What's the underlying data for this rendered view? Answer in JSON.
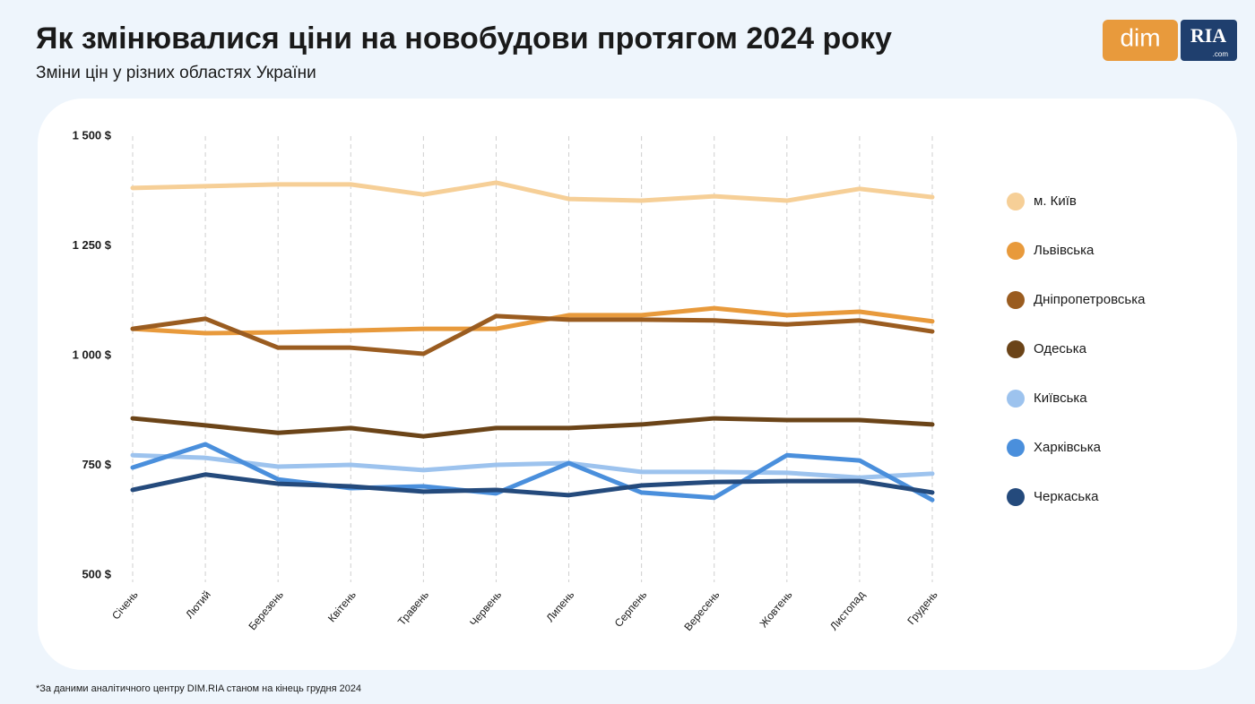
{
  "chart_data": {
    "type": "line",
    "title": "Як змінювалися ціни на новобудови протягом 2024 року",
    "subtitle": "Зміни цін у різних областях України",
    "footnote": "*За даними аналітичного центру DIM.RIA станом на кінець грудня 2024",
    "logo": {
      "left": "dim",
      "right": "RIA",
      "suffix": ".com"
    },
    "categories": [
      "Січень",
      "Лютий",
      "Березень",
      "Квітень",
      "Травень",
      "Червень",
      "Липень",
      "Серпень",
      "Вересень",
      "Жовтень",
      "Листопад",
      "Грудень"
    ],
    "ylim": [
      500,
      1500
    ],
    "yticks": [
      {
        "value": 500,
        "label": "500 $"
      },
      {
        "value": 750,
        "label": "750 $"
      },
      {
        "value": 1000,
        "label": "1 000 $"
      },
      {
        "value": 1250,
        "label": "1 250 $"
      },
      {
        "value": 1500,
        "label": "1 500 $"
      }
    ],
    "xgrid": true,
    "legend": "right",
    "series": [
      {
        "name": "м. Київ",
        "color": "#f6cf97",
        "values": [
          1382,
          1386,
          1390,
          1390,
          1367,
          1394,
          1357,
          1353,
          1363,
          1353,
          1380,
          1361
        ]
      },
      {
        "name": "Львівська",
        "color": "#e89a3c",
        "values": [
          1061,
          1051,
          1053,
          1057,
          1061,
          1061,
          1092,
          1092,
          1108,
          1092,
          1100,
          1078
        ]
      },
      {
        "name": "Дніпропетровська",
        "color": "#9a5c20",
        "values": [
          1061,
          1084,
          1018,
          1018,
          1004,
          1090,
          1082,
          1082,
          1080,
          1071,
          1080,
          1055
        ]
      },
      {
        "name": "Одеська",
        "color": "#6b4418",
        "values": [
          857,
          841,
          824,
          835,
          816,
          835,
          835,
          843,
          857,
          853,
          853,
          843
        ]
      },
      {
        "name": "Київська",
        "color": "#9dc3ee",
        "values": [
          773,
          767,
          747,
          751,
          739,
          751,
          755,
          735,
          735,
          733,
          722,
          731
        ]
      },
      {
        "name": "Харківська",
        "color": "#4a8fdc",
        "values": [
          745,
          798,
          718,
          698,
          702,
          686,
          755,
          688,
          676,
          773,
          761,
          671
        ]
      },
      {
        "name": "Черкаська",
        "color": "#244a7c",
        "values": [
          694,
          729,
          708,
          702,
          690,
          694,
          682,
          704,
          712,
          714,
          714,
          688
        ]
      }
    ]
  }
}
